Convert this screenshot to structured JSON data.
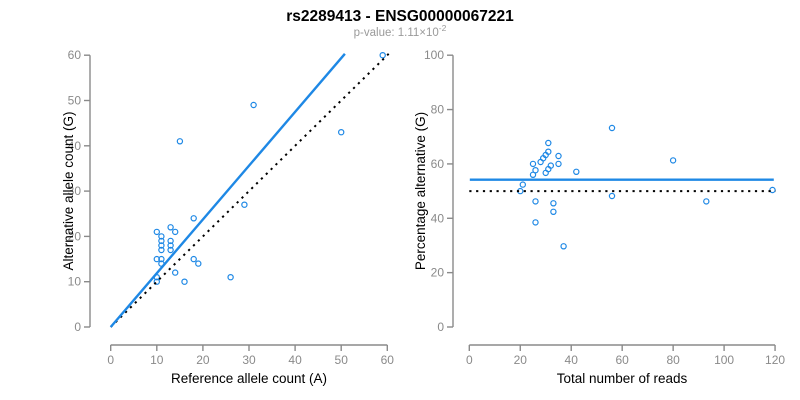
{
  "header": {
    "title": "rs2289413 - ENSG00000067221",
    "subtitle_base": "p-value: 1.11×10",
    "subtitle_exp": "-2"
  },
  "colors": {
    "accent_blue": "#1E88E5",
    "axis_gray": "#8a8a8a",
    "line_black": "#000000",
    "title_black": "#000000",
    "subtitle_gray": "#9a9a9a"
  },
  "chart_data": [
    {
      "type": "scatter",
      "name": "allele-counts",
      "xlabel": "Reference allele count (A)",
      "ylabel": "Alternative allele count (G)",
      "xlim": [
        0,
        60
      ],
      "ylim": [
        0,
        60
      ],
      "xticks": [
        0,
        10,
        20,
        30,
        40,
        50,
        60
      ],
      "yticks": [
        0,
        10,
        20,
        30,
        40,
        50,
        60
      ],
      "grid": false,
      "legend": "none",
      "points": [
        [
          10,
          10
        ],
        [
          10,
          11
        ],
        [
          11,
          14
        ],
        [
          10,
          15
        ],
        [
          11,
          15
        ],
        [
          14,
          12
        ],
        [
          16,
          10
        ],
        [
          11,
          17
        ],
        [
          11,
          18
        ],
        [
          11,
          19
        ],
        [
          11,
          20
        ],
        [
          10,
          21
        ],
        [
          13,
          17
        ],
        [
          13,
          18
        ],
        [
          13,
          19
        ],
        [
          18,
          15
        ],
        [
          19,
          14
        ],
        [
          13,
          22
        ],
        [
          14,
          21
        ],
        [
          18,
          24
        ],
        [
          26,
          11
        ],
        [
          29,
          27
        ],
        [
          15,
          41
        ],
        [
          31,
          49
        ],
        [
          50,
          43
        ],
        [
          59,
          60
        ]
      ],
      "lines": [
        {
          "name": "fit-line",
          "style": "solid",
          "color": "accent",
          "slope": 1.187,
          "x1": 0,
          "y1": 0,
          "x2": 50.8,
          "y2": 60.3
        },
        {
          "name": "identity-line",
          "style": "dotted",
          "color": "black",
          "x1": 0,
          "y1": 0,
          "x2": 60.3,
          "y2": 60.3
        }
      ]
    },
    {
      "type": "scatter",
      "name": "percentage-vs-coverage",
      "xlabel": "Total number of reads",
      "ylabel": "Percentage alternative (G)",
      "xlim": [
        0,
        120
      ],
      "ylim": [
        0,
        100
      ],
      "xticks": [
        0,
        20,
        40,
        60,
        80,
        100,
        120
      ],
      "yticks": [
        0,
        20,
        40,
        60,
        80,
        100
      ],
      "grid": false,
      "legend": "none",
      "points": [
        [
          20,
          50.0
        ],
        [
          21,
          52.4
        ],
        [
          25,
          56.0
        ],
        [
          25,
          60.0
        ],
        [
          26,
          57.7
        ],
        [
          26,
          46.2
        ],
        [
          26,
          38.5
        ],
        [
          28,
          60.7
        ],
        [
          29,
          62.1
        ],
        [
          30,
          63.3
        ],
        [
          31,
          64.5
        ],
        [
          31,
          67.7
        ],
        [
          30,
          56.7
        ],
        [
          31,
          58.1
        ],
        [
          32,
          59.4
        ],
        [
          33,
          45.5
        ],
        [
          33,
          42.4
        ],
        [
          35,
          62.9
        ],
        [
          35,
          60.0
        ],
        [
          42,
          57.1
        ],
        [
          37,
          29.7
        ],
        [
          56,
          48.2
        ],
        [
          56,
          73.2
        ],
        [
          80,
          61.3
        ],
        [
          93,
          46.2
        ],
        [
          119,
          50.4
        ]
      ],
      "lines": [
        {
          "name": "fit-line",
          "style": "solid",
          "color": "accent",
          "x1": 0.2,
          "y1": 54.2,
          "x2": 119.5,
          "y2": 54.2
        },
        {
          "name": "null-line",
          "style": "dotted",
          "color": "black",
          "x1": 0,
          "y1": 50,
          "x2": 120.2,
          "y2": 50
        }
      ]
    }
  ]
}
